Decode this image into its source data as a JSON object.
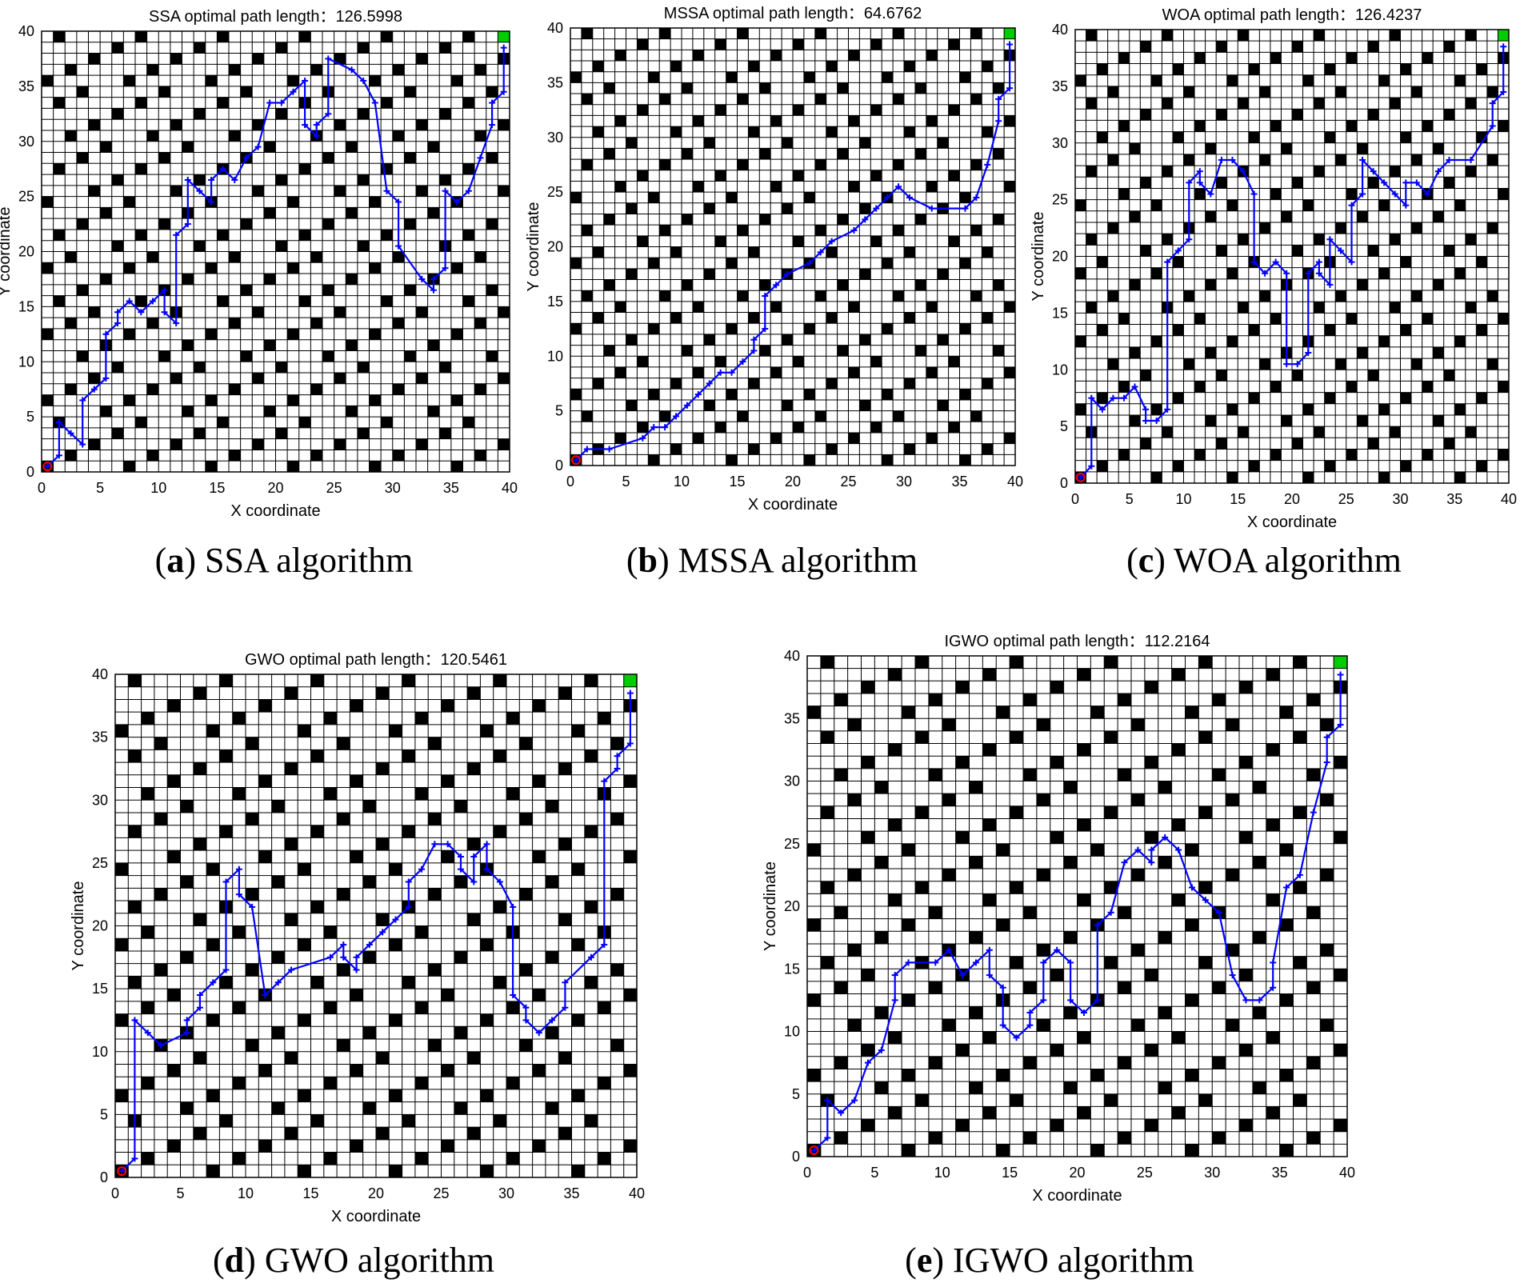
{
  "colors": {
    "path": "#0000ff",
    "obstacle": "#000000",
    "grid": "#000000",
    "goal": "#00cc00",
    "start": "#ff0000"
  },
  "chart_data": [
    {
      "type": "line",
      "title": "SSA optimal path length：126.5998",
      "xlabel": "X coordinate",
      "ylabel": "Y coordinate",
      "xlim": [
        0,
        40
      ],
      "ylim": [
        0,
        40
      ],
      "xticks": [
        "0",
        "5",
        "10",
        "15",
        "20",
        "25",
        "30",
        "35",
        "40"
      ],
      "yticks": [
        "0",
        "5",
        "10",
        "15",
        "20",
        "25",
        "30",
        "35",
        "40"
      ],
      "grid": true,
      "path": [
        [
          0.5,
          0.5
        ],
        [
          1.5,
          1.5
        ],
        [
          1.5,
          4.5
        ],
        [
          2.5,
          3.5
        ],
        [
          3.5,
          2.5
        ],
        [
          3.5,
          6.5
        ],
        [
          4.5,
          7.5
        ],
        [
          5.5,
          8.5
        ],
        [
          5.5,
          12.5
        ],
        [
          6.5,
          13.5
        ],
        [
          6.5,
          14.5
        ],
        [
          7.5,
          15.5
        ],
        [
          8.5,
          14.5
        ],
        [
          9.5,
          15.5
        ],
        [
          10.5,
          16.5
        ],
        [
          10.5,
          14.5
        ],
        [
          11.5,
          13.5
        ],
        [
          11.5,
          21.5
        ],
        [
          12.5,
          22.5
        ],
        [
          12.5,
          26.5
        ],
        [
          13.5,
          25.5
        ],
        [
          14.5,
          24.5
        ],
        [
          14.5,
          26.5
        ],
        [
          15.5,
          27.5
        ],
        [
          16.5,
          26.5
        ],
        [
          17.5,
          28.5
        ],
        [
          18.5,
          29.5
        ],
        [
          19.5,
          33.5
        ],
        [
          20.5,
          33.5
        ],
        [
          21.5,
          34.5
        ],
        [
          22.5,
          35.5
        ],
        [
          22.5,
          31.5
        ],
        [
          23.5,
          30.5
        ],
        [
          23.5,
          31.5
        ],
        [
          24.5,
          32.5
        ],
        [
          24.5,
          37.5
        ],
        [
          26.5,
          36.5
        ],
        [
          27.5,
          35.5
        ],
        [
          28.5,
          33.5
        ],
        [
          29.5,
          25.5
        ],
        [
          30.5,
          24.5
        ],
        [
          30.5,
          20.5
        ],
        [
          32.5,
          17.5
        ],
        [
          33.5,
          16.5
        ],
        [
          33.5,
          17.5
        ],
        [
          34.5,
          18.5
        ],
        [
          34.5,
          25.5
        ],
        [
          35.5,
          24.5
        ],
        [
          36.5,
          25.5
        ],
        [
          37.5,
          28.5
        ],
        [
          38.5,
          31.5
        ],
        [
          38.5,
          33.5
        ],
        [
          39.5,
          34.5
        ],
        [
          39.5,
          38.5
        ]
      ]
    },
    {
      "type": "line",
      "title": "MSSA optimal path length：64.6762",
      "xlabel": "X coordinate",
      "ylabel": "Y coordinate",
      "xlim": [
        0,
        40
      ],
      "ylim": [
        0,
        40
      ],
      "xticks": [
        "0",
        "5",
        "10",
        "15",
        "20",
        "25",
        "30",
        "35",
        "40"
      ],
      "yticks": [
        "0",
        "5",
        "10",
        "15",
        "20",
        "25",
        "30",
        "35",
        "40"
      ],
      "grid": true,
      "path": [
        [
          0.5,
          0.5
        ],
        [
          1.5,
          1.5
        ],
        [
          3.5,
          1.5
        ],
        [
          6.5,
          2.5
        ],
        [
          7.5,
          3.5
        ],
        [
          8.5,
          3.5
        ],
        [
          9.5,
          4.5
        ],
        [
          10.5,
          5.5
        ],
        [
          11.5,
          6.5
        ],
        [
          12.5,
          7.5
        ],
        [
          13.5,
          8.5
        ],
        [
          14.5,
          8.5
        ],
        [
          15.5,
          9.5
        ],
        [
          16.5,
          10.5
        ],
        [
          16.5,
          11.5
        ],
        [
          17.5,
          12.5
        ],
        [
          17.5,
          15.5
        ],
        [
          18.5,
          16.5
        ],
        [
          19.5,
          17.5
        ],
        [
          21.5,
          18.5
        ],
        [
          22.5,
          19.5
        ],
        [
          23.5,
          20.5
        ],
        [
          25.5,
          21.5
        ],
        [
          26.5,
          22.5
        ],
        [
          27.5,
          23.5
        ],
        [
          28.5,
          24.5
        ],
        [
          29.5,
          25.5
        ],
        [
          30.5,
          24.5
        ],
        [
          32.5,
          23.5
        ],
        [
          35.5,
          23.5
        ],
        [
          36.5,
          24.5
        ],
        [
          37.5,
          27.5
        ],
        [
          38.5,
          31.5
        ],
        [
          38.5,
          33.5
        ],
        [
          39.5,
          34.5
        ],
        [
          39.5,
          38.5
        ]
      ]
    },
    {
      "type": "line",
      "title": "WOA optimal path length：126.4237",
      "xlabel": "X coordinate",
      "ylabel": "Y coordinate",
      "xlim": [
        0,
        40
      ],
      "ylim": [
        0,
        40
      ],
      "xticks": [
        "0",
        "5",
        "10",
        "15",
        "20",
        "25",
        "30",
        "35",
        "40"
      ],
      "yticks": [
        "0",
        "5",
        "10",
        "15",
        "20",
        "25",
        "30",
        "35",
        "40"
      ],
      "grid": true,
      "path": [
        [
          0.5,
          0.5
        ],
        [
          1.5,
          1.5
        ],
        [
          1.5,
          7.5
        ],
        [
          2.5,
          6.5
        ],
        [
          3.5,
          7.5
        ],
        [
          4.5,
          7.5
        ],
        [
          5.5,
          8.5
        ],
        [
          6.5,
          6.5
        ],
        [
          6.5,
          5.5
        ],
        [
          7.5,
          5.5
        ],
        [
          8.5,
          6.5
        ],
        [
          8.5,
          19.5
        ],
        [
          9.5,
          20.5
        ],
        [
          10.5,
          21.5
        ],
        [
          10.5,
          26.5
        ],
        [
          11.5,
          27.5
        ],
        [
          11.5,
          26.5
        ],
        [
          12.5,
          25.5
        ],
        [
          13.5,
          28.5
        ],
        [
          14.5,
          28.5
        ],
        [
          15.5,
          27.5
        ],
        [
          16.5,
          25.5
        ],
        [
          16.5,
          19.5
        ],
        [
          17.5,
          18.5
        ],
        [
          18.5,
          19.5
        ],
        [
          19.5,
          18.5
        ],
        [
          19.5,
          10.5
        ],
        [
          20.5,
          10.5
        ],
        [
          21.5,
          11.5
        ],
        [
          21.5,
          18.5
        ],
        [
          22.5,
          19.5
        ],
        [
          22.5,
          18.5
        ],
        [
          23.5,
          17.5
        ],
        [
          23.5,
          21.5
        ],
        [
          24.5,
          20.5
        ],
        [
          25.5,
          19.5
        ],
        [
          25.5,
          24.5
        ],
        [
          26.5,
          25.5
        ],
        [
          26.5,
          28.5
        ],
        [
          27.5,
          27.5
        ],
        [
          28.5,
          26.5
        ],
        [
          29.5,
          25.5
        ],
        [
          30.5,
          24.5
        ],
        [
          30.5,
          26.5
        ],
        [
          31.5,
          26.5
        ],
        [
          32.5,
          25.5
        ],
        [
          33.5,
          27.5
        ],
        [
          34.5,
          28.5
        ],
        [
          36.5,
          28.5
        ],
        [
          38.5,
          31.5
        ],
        [
          38.5,
          33.5
        ],
        [
          39.5,
          34.5
        ],
        [
          39.5,
          38.5
        ]
      ]
    },
    {
      "type": "line",
      "title": "GWO optimal path length：120.5461",
      "xlabel": "X coordinate",
      "ylabel": "Y coordinate",
      "xlim": [
        0,
        40
      ],
      "ylim": [
        0,
        40
      ],
      "xticks": [
        "0",
        "5",
        "10",
        "15",
        "20",
        "25",
        "30",
        "35",
        "40"
      ],
      "yticks": [
        "0",
        "5",
        "10",
        "15",
        "20",
        "25",
        "30",
        "35",
        "40"
      ],
      "grid": true,
      "path": [
        [
          0.5,
          0.5
        ],
        [
          1.5,
          1.5
        ],
        [
          1.5,
          12.5
        ],
        [
          2.5,
          11.5
        ],
        [
          3.5,
          10.5
        ],
        [
          5.5,
          11.5
        ],
        [
          5.5,
          12.5
        ],
        [
          6.5,
          13.5
        ],
        [
          6.5,
          14.5
        ],
        [
          7.5,
          15.5
        ],
        [
          8.5,
          16.5
        ],
        [
          8.5,
          23.5
        ],
        [
          9.5,
          24.5
        ],
        [
          9.5,
          22.5
        ],
        [
          10.5,
          21.5
        ],
        [
          11.5,
          14.5
        ],
        [
          12.5,
          15.5
        ],
        [
          13.5,
          16.5
        ],
        [
          16.5,
          17.5
        ],
        [
          17.5,
          18.5
        ],
        [
          17.5,
          17.5
        ],
        [
          18.5,
          16.5
        ],
        [
          18.5,
          17.5
        ],
        [
          19.5,
          18.5
        ],
        [
          20.5,
          19.5
        ],
        [
          21.5,
          20.5
        ],
        [
          22.5,
          21.5
        ],
        [
          22.5,
          23.5
        ],
        [
          23.5,
          24.5
        ],
        [
          24.5,
          26.5
        ],
        [
          25.5,
          26.5
        ],
        [
          26.5,
          25.5
        ],
        [
          26.5,
          24.5
        ],
        [
          27.5,
          23.5
        ],
        [
          27.5,
          25.5
        ],
        [
          28.5,
          26.5
        ],
        [
          28.5,
          24.5
        ],
        [
          29.5,
          23.5
        ],
        [
          30.5,
          21.5
        ],
        [
          30.5,
          14.5
        ],
        [
          31.5,
          13.5
        ],
        [
          31.5,
          12.5
        ],
        [
          32.5,
          11.5
        ],
        [
          33.5,
          12.5
        ],
        [
          34.5,
          13.5
        ],
        [
          34.5,
          15.5
        ],
        [
          36.5,
          17.5
        ],
        [
          37.5,
          18.5
        ],
        [
          37.5,
          31.5
        ],
        [
          38.5,
          32.5
        ],
        [
          38.5,
          33.5
        ],
        [
          39.5,
          34.5
        ],
        [
          39.5,
          38.5
        ]
      ]
    },
    {
      "type": "line",
      "title": "IGWO optimal path length：112.2164",
      "xlabel": "X coordinate",
      "ylabel": "Y coordinate",
      "xlim": [
        0,
        40
      ],
      "ylim": [
        0,
        40
      ],
      "xticks": [
        "0",
        "5",
        "10",
        "15",
        "20",
        "25",
        "30",
        "35",
        "40"
      ],
      "yticks": [
        "0",
        "5",
        "10",
        "15",
        "20",
        "25",
        "30",
        "35",
        "40"
      ],
      "grid": true,
      "path": [
        [
          0.5,
          0.5
        ],
        [
          1.5,
          1.5
        ],
        [
          1.5,
          4.5
        ],
        [
          2.5,
          3.5
        ],
        [
          3.5,
          4.5
        ],
        [
          4.5,
          7.5
        ],
        [
          5.5,
          8.5
        ],
        [
          6.5,
          12.5
        ],
        [
          6.5,
          14.5
        ],
        [
          7.5,
          15.5
        ],
        [
          9.5,
          15.5
        ],
        [
          10.5,
          16.5
        ],
        [
          11.5,
          14.5
        ],
        [
          12.5,
          15.5
        ],
        [
          13.5,
          16.5
        ],
        [
          13.5,
          14.5
        ],
        [
          14.5,
          13.5
        ],
        [
          14.5,
          10.5
        ],
        [
          15.5,
          9.5
        ],
        [
          16.5,
          10.5
        ],
        [
          16.5,
          11.5
        ],
        [
          17.5,
          12.5
        ],
        [
          17.5,
          15.5
        ],
        [
          18.5,
          16.5
        ],
        [
          19.5,
          15.5
        ],
        [
          19.5,
          12.5
        ],
        [
          20.5,
          11.5
        ],
        [
          21.5,
          12.5
        ],
        [
          21.5,
          18.5
        ],
        [
          22.5,
          19.5
        ],
        [
          23.5,
          23.5
        ],
        [
          24.5,
          24.5
        ],
        [
          25.5,
          23.5
        ],
        [
          25.5,
          24.5
        ],
        [
          26.5,
          25.5
        ],
        [
          27.5,
          24.5
        ],
        [
          28.5,
          21.5
        ],
        [
          29.5,
          20.5
        ],
        [
          30.5,
          19.5
        ],
        [
          31.5,
          14.5
        ],
        [
          32.5,
          12.5
        ],
        [
          33.5,
          12.5
        ],
        [
          34.5,
          13.5
        ],
        [
          34.5,
          15.5
        ],
        [
          35.5,
          21.5
        ],
        [
          36.5,
          22.5
        ],
        [
          37.5,
          27.5
        ],
        [
          38.5,
          31.5
        ],
        [
          38.5,
          33.5
        ],
        [
          39.5,
          34.5
        ],
        [
          39.5,
          38.5
        ]
      ]
    }
  ],
  "captions": [
    {
      "letter": "a",
      "text": " SSA algorithm"
    },
    {
      "letter": "b",
      "text": " MSSA algorithm"
    },
    {
      "letter": "c",
      "text": " WOA algorithm"
    },
    {
      "letter": "d",
      "text": " GWO algorithm"
    },
    {
      "letter": "e",
      "text": " IGWO algorithm"
    }
  ]
}
